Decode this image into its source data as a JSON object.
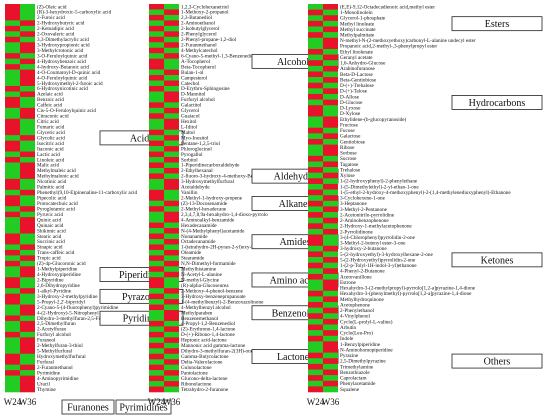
{
  "colors": {
    "high": "#e8122a",
    "low": "#22cc22",
    "box": "#222222"
  },
  "chart_data": [
    {
      "type": "heatmap",
      "columns": [
        "W24",
        "W36"
      ],
      "cells": [
        [
          1,
          0
        ],
        [
          1,
          0
        ],
        [
          1,
          0
        ],
        [
          0,
          1
        ],
        [
          1,
          0
        ],
        [
          0,
          1
        ],
        [
          1,
          0
        ],
        [
          0,
          1
        ],
        [
          0,
          1
        ],
        [
          1,
          0
        ],
        [
          0,
          1
        ],
        [
          1,
          0
        ],
        [
          0,
          1
        ],
        [
          0,
          1
        ],
        [
          0,
          1
        ],
        [
          1,
          0
        ],
        [
          0,
          1
        ],
        [
          1,
          0
        ],
        [
          1,
          0
        ],
        [
          0,
          1
        ],
        [
          0,
          1
        ],
        [
          1,
          0
        ],
        [
          1,
          0
        ],
        [
          1,
          0
        ],
        [
          0,
          1
        ],
        [
          1,
          0
        ],
        [
          1,
          0
        ],
        [
          0,
          1
        ],
        [
          1,
          0
        ],
        [
          0,
          1
        ],
        [
          0,
          1
        ],
        [
          0,
          1
        ],
        [
          1,
          0
        ],
        [
          1,
          0
        ],
        [
          0,
          1
        ],
        [
          1,
          0
        ],
        [
          1,
          0
        ],
        [
          0,
          1
        ],
        [
          1,
          0
        ],
        [
          0,
          1
        ],
        [
          0,
          1
        ],
        [
          0,
          1
        ],
        [
          1,
          0
        ],
        [
          1,
          0
        ],
        [
          0,
          1
        ],
        [
          1,
          0
        ],
        [
          0,
          1
        ],
        [
          1,
          0
        ],
        [
          0,
          1
        ],
        [
          0,
          1
        ],
        [
          1,
          0
        ],
        [
          1,
          0
        ],
        [
          0,
          1
        ],
        [
          1,
          0
        ],
        [
          1,
          0
        ],
        [
          0,
          1
        ],
        [
          0,
          1
        ],
        [
          1,
          0
        ],
        [
          0,
          1
        ],
        [
          0,
          1
        ],
        [
          1,
          0
        ],
        [
          0,
          1
        ],
        [
          0,
          1
        ],
        [
          0,
          1
        ],
        [
          1,
          0
        ],
        [
          1,
          0
        ],
        [
          0,
          1
        ],
        [
          1,
          0
        ],
        [
          0,
          1
        ],
        [
          0,
          1
        ],
        [
          0,
          1
        ]
      ],
      "rows": [
        "(Z)-Oleic acid",
        "(R)-3-hexydroxic-5-carboxylic acid",
        "2-Furoic acid",
        "2-Hydroxybutyric acid",
        "2-Ketoadipic acid",
        "2-Oxovaleric acid",
        "3,3-Dimethylacrylic acid",
        "3-Hydroxypropionic acid",
        "3-Methylcrotonic acid",
        "3-O-Feruloylquinic acid",
        "4-Hydroxybenzoic acid",
        "4-hydroxy-Butanoic acid",
        "4-O-Coumaroyl-D-quinic acid",
        "4-O-Feruloylquinic acid",
        "5-Hydroxymethyl-2-furoic acid",
        "6-Hydroxynicotinic acid",
        "Azelaic acid",
        "Benzoic acid",
        "Caffeic acid",
        "Cis-5-O-Feruloylquinic acid",
        "Citraconic acid",
        "Citric acid",
        "Fumaric acid",
        "Glyceric acid",
        "Glycolic acid",
        "Isocitric acid",
        "Itaconic acid",
        "Lactic acid",
        "Linoleic acid",
        "Malic acid",
        "Methylmaleic acid",
        "Methylmalonic acid",
        "Nicotinic acid",
        "Palmitic acid",
        "Phenethyl(9,10-E)pinenaline-11-carboxylic acid",
        "Pipecolic acid",
        "Protocatechuic acid",
        "Pyroglutamic acid",
        "Pyruvic acid",
        "Quinic acid",
        "Quinaic acid",
        "Shikimic acid",
        "Stearic acid",
        "Succinic acid",
        "Sinapic acid",
        "Trans-caffeic acid",
        "Tropic acid",
        "(Z)-4p-Glucoronic acid",
        "1-Methylpiperidine",
        "4-Hydroxypiperidine",
        "2-Bipyridine",
        "2,6-Dihydropyridine",
        "1-alkyl-Pyridine",
        "3-Hydroxy-2-methylpyridine",
        "5-Propyl-2,2'-bipyridyl",
        "2-Cyano-5-(4-fluorophenyl)pyrimidine",
        "4-(2-Hydroxy)-5-Nitrophenyl",
        "Dihydro-3-methylfuran-2,5-Furandione",
        "2,5-Dimethylfuran",
        "2-Acetylfuran",
        "Furfuryl alcohol",
        "Furaneol",
        "2-Methylfuran-3-thiol",
        "5-Methylfurfural",
        "Hydroxymethylfurfural",
        "Furfural",
        "2-Furanmethanol",
        "Pyrimidine",
        "4-Aminopyrimidine",
        "Uracil",
        "Thymine"
      ],
      "labels": [
        {
          "text": "Acids",
          "row": 24
        },
        {
          "text": "Piperidines",
          "row": 49
        },
        {
          "text": "Pyrazoles",
          "row": 53
        },
        {
          "text": "Pyridines",
          "row": 57
        },
        {
          "text": "Furanones",
          "row": 66
        },
        {
          "text": "Pyrimidines",
          "row": 66
        }
      ]
    },
    {
      "type": "heatmap",
      "columns": [
        "W24",
        "W36"
      ],
      "cells": [
        [
          1,
          0
        ],
        [
          0,
          1
        ],
        [
          1,
          0
        ],
        [
          0,
          1
        ],
        [
          1,
          0
        ],
        [
          0,
          1
        ],
        [
          1,
          0
        ],
        [
          0,
          1
        ],
        [
          1,
          0
        ],
        [
          0,
          1
        ],
        [
          1,
          0
        ],
        [
          1,
          0
        ],
        [
          0,
          1
        ],
        [
          1,
          0
        ],
        [
          0,
          1
        ],
        [
          1,
          0
        ],
        [
          0,
          1
        ],
        [
          0,
          1
        ],
        [
          1,
          0
        ],
        [
          0,
          1
        ],
        [
          1,
          0
        ],
        [
          0,
          1
        ],
        [
          0,
          1
        ],
        [
          1,
          0
        ],
        [
          0,
          1
        ],
        [
          1,
          0
        ],
        [
          0,
          1
        ],
        [
          1,
          0
        ],
        [
          0,
          1
        ],
        [
          1,
          0
        ],
        [
          0,
          1
        ],
        [
          1,
          0
        ],
        [
          0,
          1
        ],
        [
          0,
          1
        ],
        [
          1,
          0
        ],
        [
          1,
          0
        ],
        [
          0,
          1
        ],
        [
          1,
          0
        ],
        [
          0,
          1
        ],
        [
          0,
          1
        ],
        [
          1,
          0
        ],
        [
          0,
          1
        ],
        [
          1,
          0
        ],
        [
          0,
          1
        ],
        [
          1,
          0
        ],
        [
          0,
          1
        ],
        [
          1,
          0
        ],
        [
          0,
          1
        ],
        [
          1,
          0
        ],
        [
          0,
          1
        ],
        [
          1,
          0
        ],
        [
          1,
          0
        ],
        [
          0,
          1
        ],
        [
          1,
          0
        ],
        [
          0,
          1
        ],
        [
          1,
          0
        ],
        [
          0,
          1
        ],
        [
          0,
          1
        ],
        [
          1,
          0
        ],
        [
          0,
          1
        ],
        [
          1,
          0
        ],
        [
          0,
          1
        ],
        [
          1,
          0
        ],
        [
          0,
          1
        ],
        [
          1,
          0
        ],
        [
          0,
          1
        ],
        [
          1,
          0
        ],
        [
          0,
          1
        ],
        [
          1,
          0
        ],
        [
          0,
          1
        ],
        [
          1,
          0
        ]
      ],
      "rows": [
        "1,2,3-Cyclohexanetriol",
        "1-Methoxy-2-propanol",
        "2,3-Butanediol",
        "2-Aminoethanol",
        "2-Isobutylglycerol",
        "2-Phenylglycerol",
        "2-Phenyl-propane-1,2-diol",
        "2-Furanmethanol",
        "4-Methylcatechol",
        "6-Cyano-5-methyl-1,3-Benzenediol",
        "A-Tocopherol",
        "Beta-Tocopherol",
        "Bulan-1-ol",
        "Campesterol",
        "Catechol",
        "D-Erythro-Sphingosine",
        "D-Mannitol",
        "Furfuryl alcohol",
        "Galactitol",
        "Glycerol",
        "Guaiacol",
        "Hexitol",
        "L-Iditol",
        "Maltol",
        "Myo-Inositol",
        "Pentane-1,2,5-triol",
        "Phloroglucinol",
        "Pyrogallol",
        "Sorbitol",
        "1-Piperidinecarboxaldehyde",
        "2-Ethylhexanal",
        "2-fluoro-3-hydroxy-4-methoxy-Benzaldehyde",
        "3-Hydroxymethylfurfural",
        "Acetaldehyde",
        "Vanillin",
        "2-Methyl-1-hydroxy-propene",
        "(Z)-13-Docosenamide",
        "2-Methyl-hexadecane",
        "2,3,4,7,8,9a-hexahydro-1,4-dioxo-pyrrolo",
        "4-Aminoalkyl-benzamide",
        "Hexadecanamide",
        "N-(4-Methylphenyl)acetamide",
        "Nonanamide",
        "Octadecanamide",
        "1-(tetrahydro-2H-pyran-2-yl)oxy-benzamide",
        "Oleamide",
        "Stearamide",
        "N,N-Dimethyl-formamide",
        "Methylhistamine",
        "N-Acetyl-L-alanine",
        "N-methyl-Glycine",
        "(R)-alpha-Glucoseurea",
        "2-Methoxy-4-phenol-benzene",
        "3-Hydroxy-benzenepropanoate",
        "1-(4-methylbenzyl)-2-Benzoxazolinone",
        "4-Methylbenzyl alcohol",
        "Methylparaben",
        "Benzenemethanol",
        "4-Propyl-1,2-Benzenediol",
        "(Z)-Erythrono-1,4-lactone",
        "D-(+)-Ribono-1,4-lactone",
        "Heptonic acid-lactone",
        "Mannonic acid gamma-lactone",
        "Dihydro-3-methylfuran-2(3H)-one",
        "Gamma-Butyrolactone",
        "Delta-Valerolactone",
        "Gulonolactone",
        "Pantolactone",
        "Glucono-delta-lactone",
        "Ribonolactone",
        "Tetrahydro-2-furanone"
      ],
      "labels": [
        {
          "text": "Alcohols",
          "row": 10
        },
        {
          "text": "Aldehydes",
          "row": 31
        },
        {
          "text": "Alkanes",
          "row": 36
        },
        {
          "text": "Amides",
          "row": 43
        },
        {
          "text": "Amino acids",
          "row": 50
        },
        {
          "text": "Benzenoids",
          "row": 56
        },
        {
          "text": "Lactones",
          "row": 64
        }
      ]
    },
    {
      "type": "heatmap",
      "columns": [
        "W24",
        "W36"
      ],
      "cells": [
        [
          0,
          1
        ],
        [
          1,
          0
        ],
        [
          0,
          1
        ],
        [
          1,
          0
        ],
        [
          0,
          1
        ],
        [
          1,
          0
        ],
        [
          0,
          1
        ],
        [
          0,
          1
        ],
        [
          1,
          0
        ],
        [
          0,
          1
        ],
        [
          1,
          0
        ],
        [
          0,
          1
        ],
        [
          1,
          0
        ],
        [
          0,
          1
        ],
        [
          1,
          0
        ],
        [
          0,
          1
        ],
        [
          1,
          0
        ],
        [
          0,
          1
        ],
        [
          1,
          0
        ],
        [
          1,
          0
        ],
        [
          0,
          1
        ],
        [
          0,
          1
        ],
        [
          1,
          0
        ],
        [
          0,
          1
        ],
        [
          1,
          0
        ],
        [
          0,
          1
        ],
        [
          0,
          1
        ],
        [
          1,
          0
        ],
        [
          0,
          1
        ],
        [
          1,
          0
        ],
        [
          0,
          1
        ],
        [
          1,
          0
        ],
        [
          0,
          1
        ],
        [
          1,
          0
        ],
        [
          0,
          1
        ],
        [
          1,
          0
        ],
        [
          0,
          1
        ],
        [
          1,
          0
        ],
        [
          0,
          1
        ],
        [
          1,
          0
        ],
        [
          0,
          1
        ],
        [
          1,
          0
        ],
        [
          1,
          0
        ],
        [
          0,
          1
        ],
        [
          1,
          0
        ],
        [
          0,
          1
        ],
        [
          1,
          0
        ],
        [
          0,
          1
        ],
        [
          1,
          0
        ],
        [
          0,
          1
        ],
        [
          0,
          1
        ],
        [
          1,
          0
        ],
        [
          0,
          1
        ],
        [
          1,
          0
        ],
        [
          0,
          1
        ],
        [
          1,
          0
        ],
        [
          0,
          1
        ],
        [
          1,
          0
        ],
        [
          0,
          1
        ],
        [
          1,
          0
        ],
        [
          0,
          1
        ],
        [
          0,
          1
        ],
        [
          1,
          0
        ],
        [
          0,
          1
        ],
        [
          1,
          0
        ],
        [
          0,
          1
        ],
        [
          1,
          0
        ],
        [
          0,
          1
        ],
        [
          1,
          0
        ]
      ],
      "rows": [
        "(E,E)-9,12-Octadecadienoic acid,methyl ester",
        "1-Monolinolein",
        "Glycerol-1-phosphate",
        "Methyl linoleate",
        "Methyl succinate",
        "Methylpalmitate",
        "N-methyl-N-(2-methoxyethoxy)carbonyl-L-alanine undecyl ester",
        "Propanoic acid,2-methyl-,3-phenylpropyl ester",
        "Ethyl linolenate",
        "Geranyl acetate",
        "1,6-Anhydro-Glucose",
        "Arabinofuranose",
        "Beta-D-Lactose",
        "Beta-Gentiobiose",
        "D-(+)-Trehalose",
        "D-(+)-Talose",
        "D-Allose",
        "D-Glucose",
        "D-Lyxose",
        "D-Xylose",
        "Ethylidene-(b-glucopyranoside)",
        "Fructose",
        "Fucose",
        "Galactose",
        "Gentiobiose",
        "Ribose",
        "Sorbose",
        "Sucrose",
        "Tagatose",
        "Trehalose",
        "Xylose",
        "1-(2-hydroxyphenyl)-2-phenylethane",
        "1-(5-Dimethylethyl)-2-yl-ethan-1-one",
        "1-(5-ethyl-2-hydroxy-4-methoxyphenyl)-2-(1,4-methylenedioxyphenyl)-Ethanone",
        "3-Cyclohexene-1-one",
        "3-Heptanone",
        "3-Methyl-2-Pentanone",
        "2-Acetonitrilo-pyrrolidine",
        "2-Aminobenzophenone",
        "2-Hydroxy-1-methylacetophenone",
        "2-Pyrrolidinone",
        "3-(4-Chlorophenyl)pyrrolidin-2-one",
        "3-Methyl-2-butenyl ester-3-one",
        "3-hydroxy-2-butanone",
        "5-(2-hydroxyethyl)-3-hydroxylhexane-2-one",
        "5-(2-Hydroxyethyl)pyrrolidin-2-one",
        "1-(2-p-Tolyl-1H-indol-3-yl)ethanone",
        "4-Phenyl-2-Butanone",
        "Acetovanillone",
        "Estrone",
        "Hexahydro-3-(2-methylpropyl)-pyrrolo[1,2-a]pyrazine-1,4-dione",
        "Hexahydro-3-(phenylmethyl)-pyrrolo[1,2-a]pyrazine-1,4-dione",
        "Methylhydroquinone",
        "Acetophenone",
        "2-Phenylethanol",
        "4-Vinylphenol",
        "Cyclo(L-prolyl-L-valine)",
        "Arbutin",
        "Cyclo(Leu-Pro)",
        "Indole",
        "1-Benzylpiperidine",
        "N-Aminohomopiperidine",
        "Pyrazine",
        "2,5-Dimethylpyrazine",
        "Trimethylamine",
        "Benzothiazole",
        "Caprolactam",
        "Phenylacetamide",
        "Squalene"
      ],
      "labels": [
        {
          "text": "Esters",
          "row": 3
        },
        {
          "text": "Hydrocarbons",
          "row": 17
        },
        {
          "text": "Ketones",
          "row": 45
        },
        {
          "text": "Others",
          "row": 63
        }
      ]
    }
  ]
}
